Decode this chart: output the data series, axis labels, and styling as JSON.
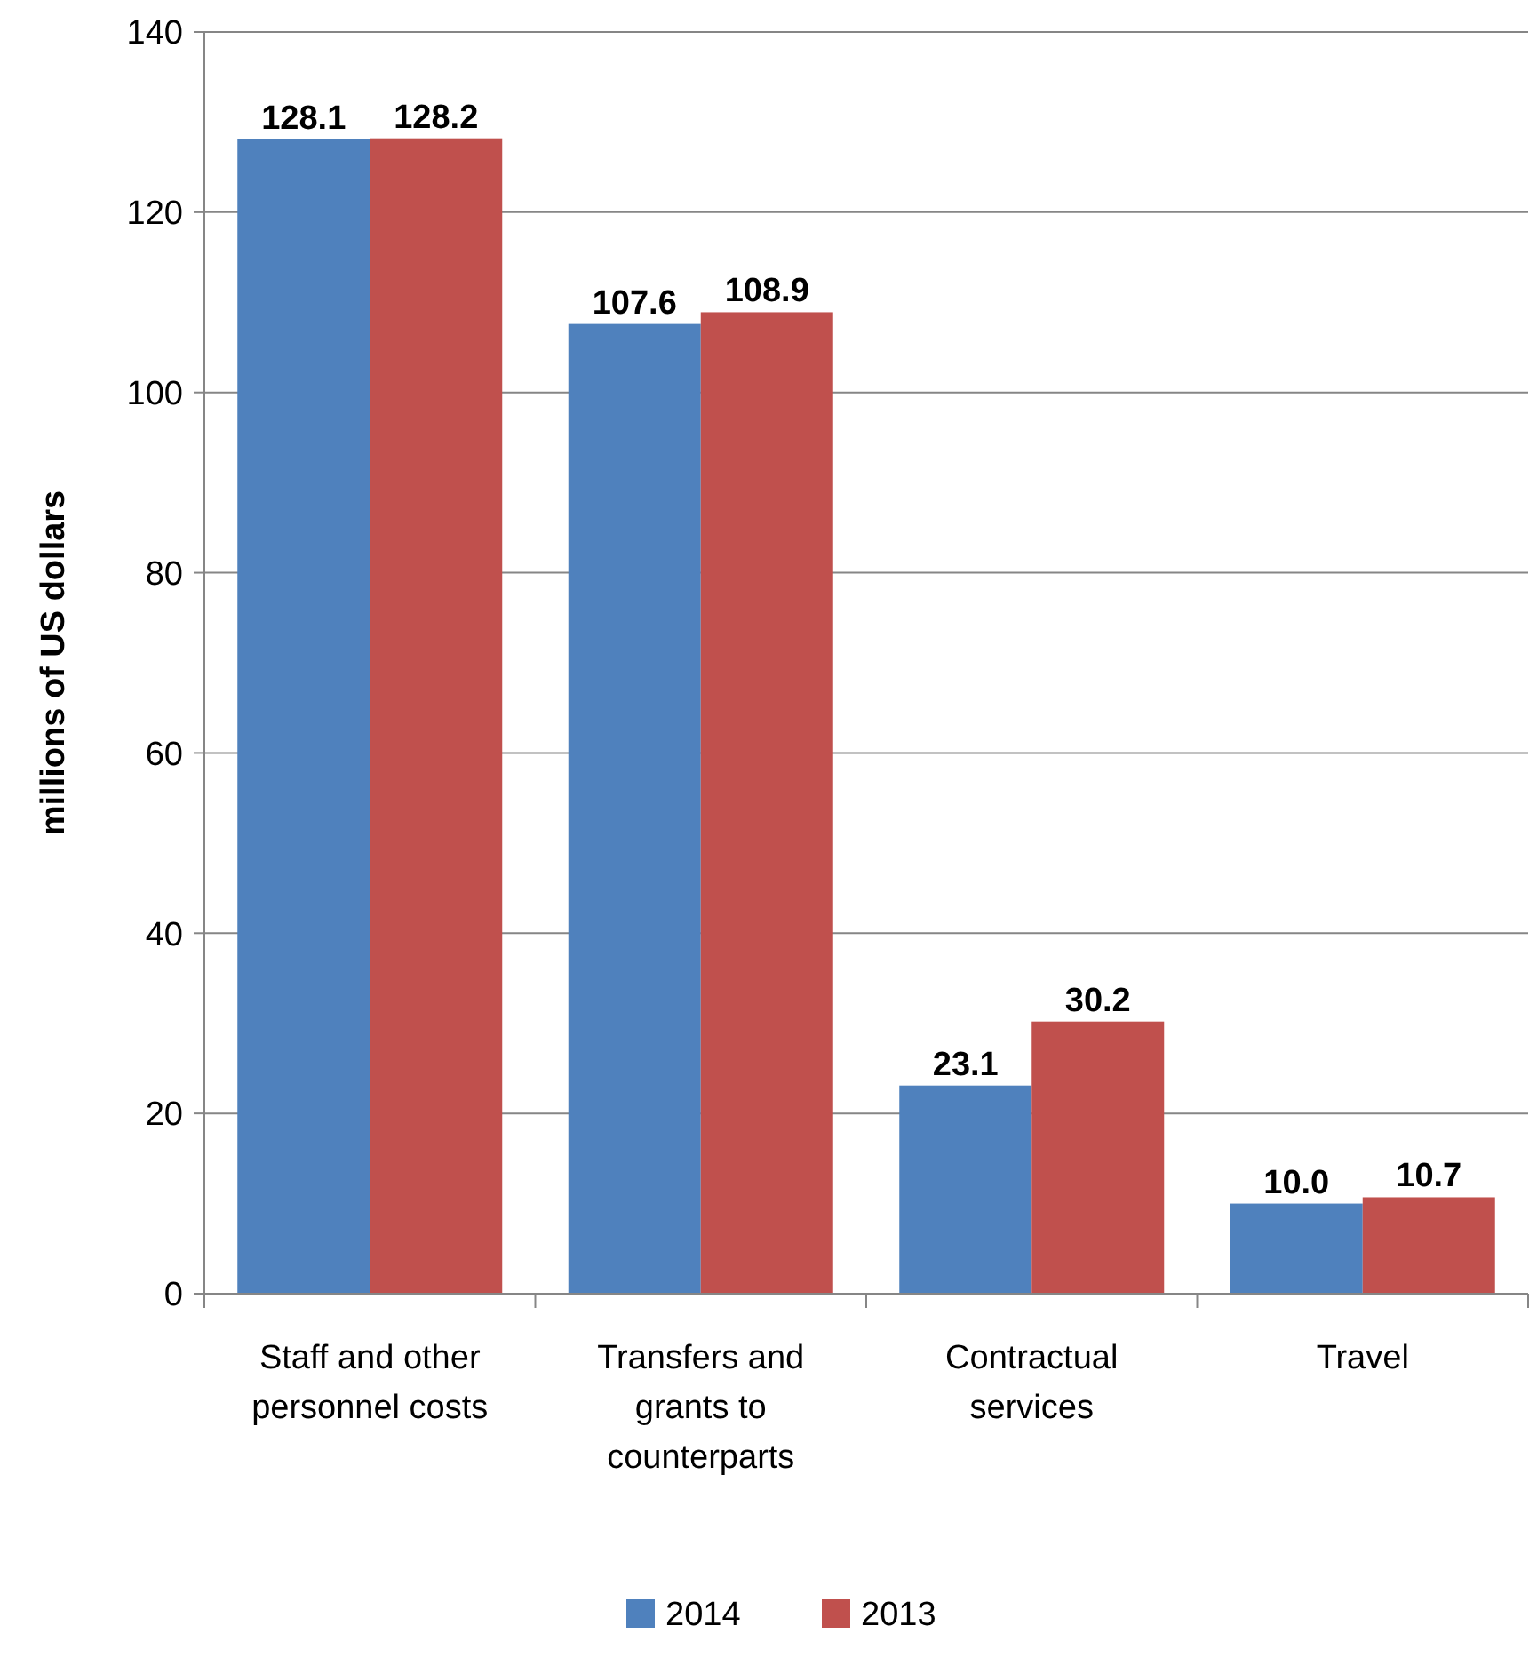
{
  "chart_data": {
    "type": "bar",
    "ylabel": "millions of US dollars",
    "categories": [
      "Staff and other personnel costs",
      "Transfers and grants to counterparts",
      "Contractual services",
      "Travel"
    ],
    "series": [
      {
        "name": "2014",
        "color": "#4f81bd",
        "values": [
          128.1,
          107.6,
          23.1,
          10.0
        ],
        "value_labels": [
          "128.1",
          "107.6",
          "23.1",
          "10.0"
        ]
      },
      {
        "name": "2013",
        "color": "#c0504d",
        "values": [
          128.2,
          108.9,
          30.2,
          10.7
        ],
        "value_labels": [
          "128.2",
          "108.9",
          "30.2",
          "10.7"
        ]
      }
    ],
    "ylim": [
      0,
      140
    ],
    "yticks": [
      0,
      20,
      40,
      60,
      80,
      100,
      120,
      140
    ],
    "grid": "y",
    "legend": "bottom"
  }
}
